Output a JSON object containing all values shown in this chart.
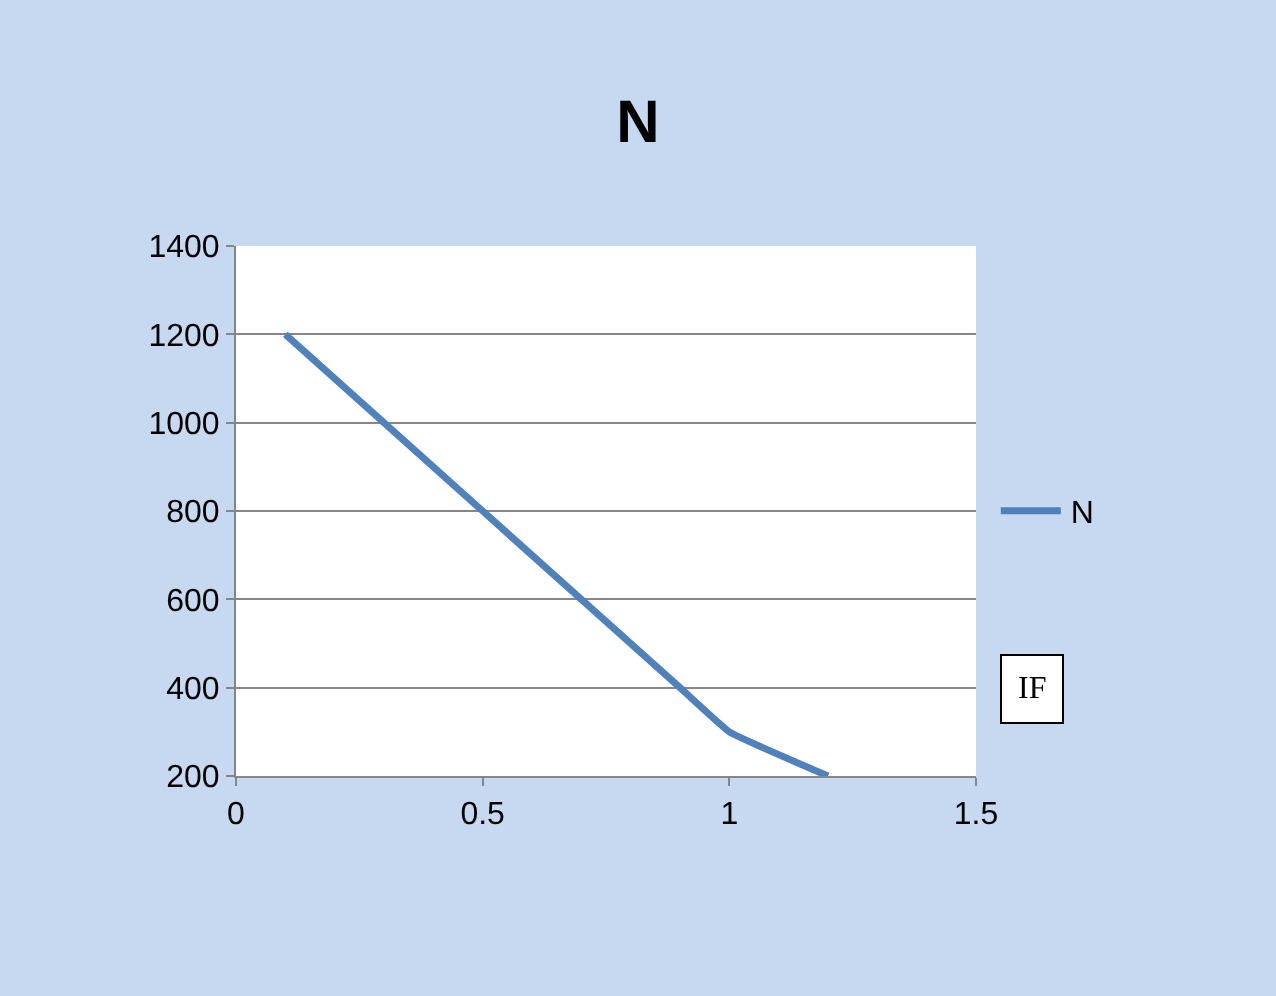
{
  "chart_data": {
    "type": "line",
    "title": "N",
    "x": [
      0.1,
      0.5,
      0.9,
      1.0,
      1.2
    ],
    "series": [
      {
        "name": "N",
        "color": "#4f81bd",
        "values": [
          1200,
          800,
          400,
          300,
          200
        ]
      }
    ],
    "xlim": [
      0,
      1.5
    ],
    "xticks": [
      0,
      0.5,
      1,
      1.5
    ],
    "ylim": [
      200,
      1400
    ],
    "yticks": [
      200,
      400,
      600,
      800,
      1000,
      1200,
      1400
    ],
    "grid": "y",
    "legend": "right",
    "annotations": [
      "IF"
    ]
  }
}
